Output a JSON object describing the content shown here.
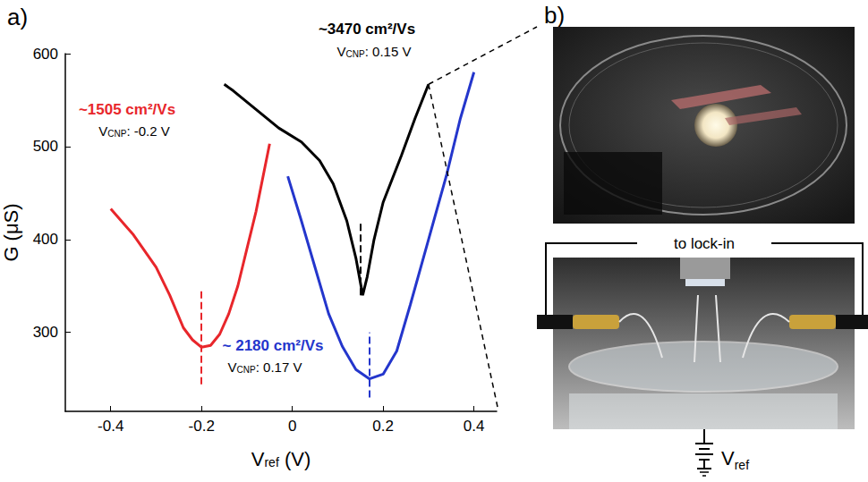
{
  "chart_data": {
    "type": "line",
    "panel_label": "a)",
    "x_label": {
      "symbol": "V",
      "subscript": "ref",
      "text": " (V)"
    },
    "y_label": "G (μS)",
    "xlim": [
      -0.5,
      0.45
    ],
    "xticks": [
      -0.4,
      -0.2,
      0,
      0.2,
      0.4
    ],
    "ylim": [
      215,
      600
    ],
    "yticks": [
      300,
      400,
      500,
      600
    ],
    "grid": false,
    "series": [
      {
        "color": "#e8262b",
        "line_style": "solid",
        "x": [
          -0.4,
          -0.35,
          -0.3,
          -0.27,
          -0.24,
          -0.22,
          -0.2,
          -0.18,
          -0.16,
          -0.14,
          -0.12,
          -0.1,
          -0.08,
          -0.05
        ],
        "values": [
          433,
          405,
          370,
          340,
          305,
          292,
          284,
          286,
          298,
          320,
          350,
          390,
          430,
          503
        ],
        "mobility_label": "~1505 cm²/Vs",
        "cnp": -0.2,
        "cnp_label": {
          "symbol": "V",
          "subscript": "CNP",
          "text": ": -0.2 V"
        },
        "cnp_line": [
          244,
          345
        ]
      },
      {
        "color": "#000000",
        "line_style": "solid",
        "x": [
          -0.15,
          -0.13,
          -0.08,
          -0.03,
          0.02,
          0.06,
          0.09,
          0.12,
          0.14,
          0.155,
          0.165,
          0.18,
          0.2,
          0.24,
          0.27,
          0.3
        ],
        "values": [
          567,
          560,
          540,
          520,
          505,
          485,
          460,
          420,
          380,
          340,
          360,
          400,
          440,
          490,
          530,
          567
        ],
        "mobility_label": "~3470 cm²/Vs",
        "cnp": 0.15,
        "cnp_label": {
          "symbol": "V",
          "subscript": "CNP",
          "text": ": 0.15 V"
        },
        "cnp_line": [
          340,
          420
        ]
      },
      {
        "color": "#2436cc",
        "line_style": "solid",
        "x": [
          -0.01,
          0.02,
          0.05,
          0.08,
          0.11,
          0.14,
          0.17,
          0.2,
          0.23,
          0.26,
          0.3,
          0.34,
          0.37,
          0.4
        ],
        "values": [
          468,
          420,
          370,
          320,
          285,
          260,
          250,
          255,
          280,
          330,
          400,
          470,
          530,
          580
        ],
        "mobility_label": "~ 2180 cm²/Vs",
        "cnp": 0.17,
        "cnp_label": {
          "symbol": "V",
          "subscript": "CNP",
          "text": ": 0.17 V"
        },
        "cnp_line": [
          230,
          300
        ]
      }
    ]
  },
  "photo_panel": {
    "panel_label": "b)",
    "wire_label": "to lock-in",
    "source_label": {
      "symbol": "V",
      "subscript": "ref"
    }
  }
}
